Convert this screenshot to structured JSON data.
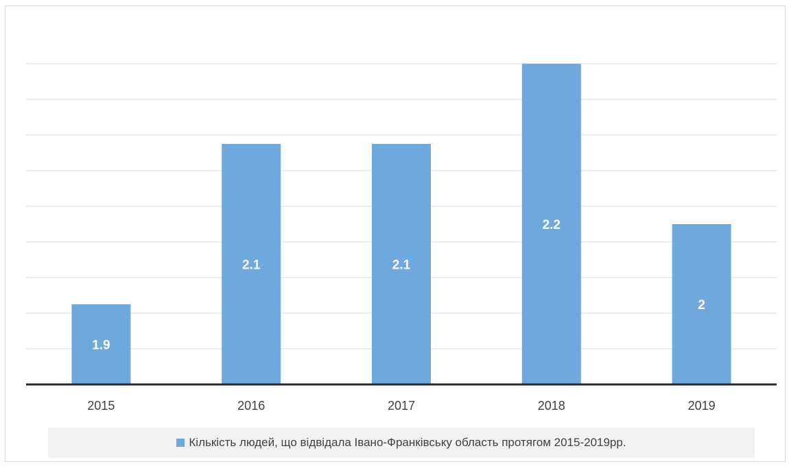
{
  "chart_data": {
    "type": "bar",
    "categories": [
      "2015",
      "2016",
      "2017",
      "2018",
      "2019"
    ],
    "series": [
      {
        "name": "Кількість людей, що відвідала Івано-Франківську область протягом 2015-2019рр.",
        "values": [
          1.9,
          2.1,
          2.1,
          2.2,
          2
        ]
      }
    ],
    "data_labels": [
      "1.9",
      "2.1",
      "2.1",
      "2.2",
      "2"
    ],
    "ylim": [
      1.8,
      2.2
    ],
    "grid": true,
    "legend_position": "bottom",
    "title": "",
    "xlabel": "",
    "ylabel": ""
  },
  "colors": {
    "bar": "#6fa8dc",
    "gridline": "#d9d9d9",
    "axis": "#262626",
    "label_text": "#ffffff",
    "tick_text": "#404040"
  }
}
